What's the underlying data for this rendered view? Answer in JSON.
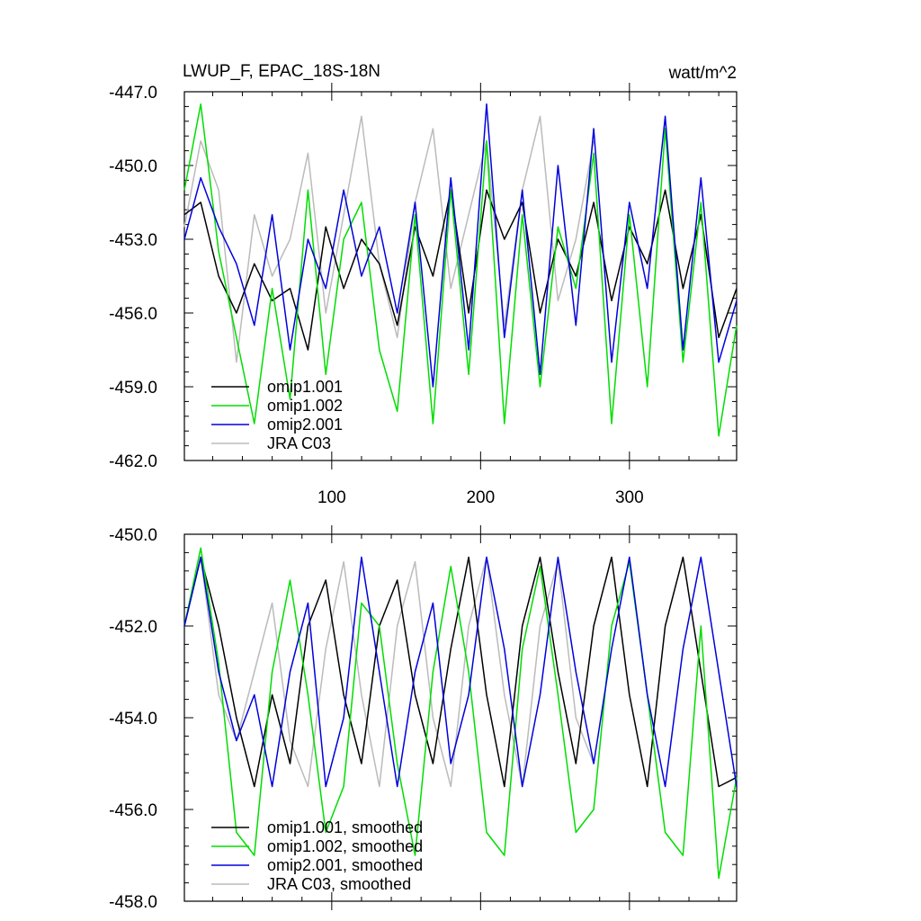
{
  "colors": {
    "omip1_001": "#000000",
    "omip1_002": "#00dd00",
    "omip2_001": "#0000dd",
    "jra_c03": "#bbbbbb"
  },
  "chart_data": [
    {
      "type": "line",
      "title": "LWUP_F, EPAC_18S-18N",
      "units": "watt/m^2",
      "xlim": [
        1,
        372
      ],
      "ylim": [
        -462.0,
        -447.0
      ],
      "xticks": [
        100,
        200,
        300
      ],
      "xtick_labels": [
        "100",
        "200",
        "300"
      ],
      "yticks": [
        -447.0,
        -450.0,
        -453.0,
        -456.0,
        -459.0,
        -462.0
      ],
      "ytick_labels": [
        "-447.0",
        "-450.0",
        "-453.0",
        "-456.0",
        "-459.0",
        "-462.0"
      ],
      "legend_position": "bottom-left",
      "series": [
        {
          "name": "omip1.001",
          "color": "#000000",
          "x": [
            1,
            12,
            24,
            36,
            48,
            60,
            72,
            84,
            96,
            108,
            120,
            132,
            144,
            156,
            168,
            180,
            192,
            204,
            216,
            228,
            240,
            252,
            264,
            276,
            288,
            300,
            312,
            324,
            336,
            348,
            360,
            372
          ],
          "values": [
            -452.0,
            -451.5,
            -454.5,
            -456.0,
            -454.0,
            -455.5,
            -455.0,
            -457.5,
            -452.5,
            -455.0,
            -453.0,
            -454.0,
            -456.5,
            -452.5,
            -454.5,
            -451.0,
            -456.0,
            -451.0,
            -453.0,
            -451.5,
            -456.0,
            -453.0,
            -454.5,
            -451.5,
            -455.5,
            -452.5,
            -454.0,
            -451.0,
            -455.0,
            -452.0,
            -457.0,
            -455.0
          ]
        },
        {
          "name": "omip1.002",
          "color": "#00dd00",
          "x": [
            1,
            12,
            24,
            36,
            48,
            60,
            72,
            84,
            96,
            108,
            120,
            132,
            144,
            156,
            168,
            180,
            192,
            204,
            216,
            228,
            240,
            252,
            264,
            276,
            288,
            300,
            312,
            324,
            336,
            348,
            360,
            372
          ],
          "values": [
            -451.0,
            -447.5,
            -453.5,
            -457.0,
            -460.5,
            -455.0,
            -459.5,
            -451.0,
            -458.5,
            -453.0,
            -451.5,
            -457.5,
            -460.0,
            -452.0,
            -460.5,
            -451.0,
            -458.5,
            -449.0,
            -460.5,
            -452.0,
            -459.0,
            -452.5,
            -455.0,
            -449.5,
            -460.5,
            -452.0,
            -459.0,
            -448.5,
            -458.0,
            -451.5,
            -461.0,
            -456.5
          ]
        },
        {
          "name": "omip2.001",
          "color": "#0000dd",
          "x": [
            1,
            12,
            24,
            36,
            48,
            60,
            72,
            84,
            96,
            108,
            120,
            132,
            144,
            156,
            168,
            180,
            192,
            204,
            216,
            228,
            240,
            252,
            264,
            276,
            288,
            300,
            312,
            324,
            336,
            348,
            360,
            372
          ],
          "values": [
            -453.0,
            -450.5,
            -452.5,
            -454.0,
            -456.5,
            -452.0,
            -457.5,
            -453.0,
            -455.0,
            -451.0,
            -454.5,
            -452.5,
            -456.0,
            -451.5,
            -459.0,
            -450.5,
            -457.5,
            -447.5,
            -457.0,
            -451.0,
            -458.5,
            -450.0,
            -456.5,
            -448.5,
            -458.0,
            -451.5,
            -455.0,
            -448.0,
            -457.5,
            -450.5,
            -458.0,
            -455.5
          ]
        },
        {
          "name": "JRA C03",
          "color": "#bbbbbb",
          "x": [
            1,
            12,
            24,
            36,
            48,
            60,
            72,
            84,
            96,
            108,
            120,
            132,
            144,
            156,
            168,
            180,
            192,
            204,
            216,
            228,
            240,
            252,
            264,
            276
          ],
          "values": [
            -452.5,
            -449.0,
            -451.0,
            -458.0,
            -452.0,
            -454.5,
            -453.0,
            -449.5,
            -456.0,
            -452.0,
            -448.0,
            -454.0,
            -457.0,
            -451.5,
            -448.5,
            -455.0,
            -452.0,
            -449.0,
            -456.5,
            -451.0,
            -448.0,
            -455.5,
            -453.0,
            -449.0
          ]
        }
      ]
    },
    {
      "type": "line",
      "title": "",
      "units": "",
      "xlim": [
        1,
        372
      ],
      "ylim": [
        -458.0,
        -450.0
      ],
      "xticks": [
        100,
        200,
        300
      ],
      "xtick_labels": [
        "",
        "",
        ""
      ],
      "yticks": [
        -450.0,
        -452.0,
        -454.0,
        -456.0,
        -458.0
      ],
      "ytick_labels": [
        "-450.0",
        "-452.0",
        "-454.0",
        "-456.0",
        "-458.0"
      ],
      "legend_position": "bottom-left",
      "series": [
        {
          "name": "omip1.001, smoothed",
          "color": "#000000",
          "x": [
            1,
            12,
            24,
            36,
            48,
            60,
            72,
            84,
            96,
            108,
            120,
            132,
            144,
            156,
            168,
            180,
            192,
            204,
            216,
            228,
            240,
            252,
            264,
            276,
            288,
            300,
            312,
            324,
            336,
            348,
            360,
            372
          ],
          "values": [
            -452.0,
            -450.5,
            -452.0,
            -454.0,
            -455.5,
            -453.5,
            -455.0,
            -452.0,
            -451.0,
            -453.5,
            -455.0,
            -452.0,
            -451.0,
            -453.5,
            -455.0,
            -452.5,
            -450.5,
            -453.5,
            -455.5,
            -452.0,
            -450.5,
            -453.0,
            -455.0,
            -452.0,
            -450.5,
            -453.5,
            -455.5,
            -452.0,
            -450.5,
            -453.0,
            -455.5,
            -455.3
          ]
        },
        {
          "name": "omip1.002, smoothed",
          "color": "#00dd00",
          "x": [
            1,
            12,
            24,
            36,
            48,
            60,
            72,
            84,
            96,
            108,
            120,
            132,
            144,
            156,
            168,
            180,
            192,
            204,
            216,
            228,
            240,
            252,
            264,
            276,
            288,
            300,
            312,
            324,
            336,
            348,
            360,
            372
          ],
          "values": [
            -452.0,
            -450.3,
            -452.8,
            -456.5,
            -457.0,
            -453.0,
            -451.0,
            -453.5,
            -456.5,
            -455.5,
            -451.5,
            -452.0,
            -455.0,
            -457.0,
            -453.0,
            -450.7,
            -453.0,
            -456.5,
            -457.0,
            -452.5,
            -450.7,
            -453.5,
            -456.5,
            -456.0,
            -452.0,
            -450.6,
            -453.5,
            -456.5,
            -457.0,
            -452.0,
            -457.5,
            -455.3
          ]
        },
        {
          "name": "omip2.001, smoothed",
          "color": "#0000dd",
          "x": [
            1,
            12,
            24,
            36,
            48,
            60,
            72,
            84,
            96,
            108,
            120,
            132,
            144,
            156,
            168,
            180,
            192,
            204,
            216,
            228,
            240,
            252,
            264,
            276,
            288,
            300,
            312,
            324,
            336,
            348,
            360,
            372
          ],
          "values": [
            -452.0,
            -450.5,
            -453.0,
            -454.5,
            -453.5,
            -455.5,
            -453.0,
            -451.5,
            -455.5,
            -454.0,
            -450.5,
            -453.0,
            -455.5,
            -453.0,
            -451.5,
            -455.0,
            -453.5,
            -450.5,
            -452.5,
            -455.5,
            -453.5,
            -450.5,
            -453.0,
            -455.0,
            -452.5,
            -450.5,
            -453.5,
            -455.5,
            -452.5,
            -450.5,
            -453.0,
            -455.5
          ]
        },
        {
          "name": "JRA C03, smoothed",
          "color": "#bbbbbb",
          "x": [
            1,
            12,
            24,
            36,
            48,
            60,
            72,
            84,
            96,
            108,
            120,
            132,
            144,
            156,
            168,
            180,
            192,
            204,
            216,
            228,
            240,
            252,
            264,
            276
          ],
          "values": [
            -452.0,
            -450.5,
            -453.5,
            -454.5,
            -453.0,
            -451.5,
            -454.5,
            -455.5,
            -452.5,
            -450.6,
            -453.5,
            -455.5,
            -452.0,
            -450.6,
            -454.0,
            -455.5,
            -452.0,
            -450.5,
            -453.5,
            -455.5,
            -452.0,
            -450.6,
            -454.0,
            -455.0
          ]
        }
      ]
    }
  ]
}
